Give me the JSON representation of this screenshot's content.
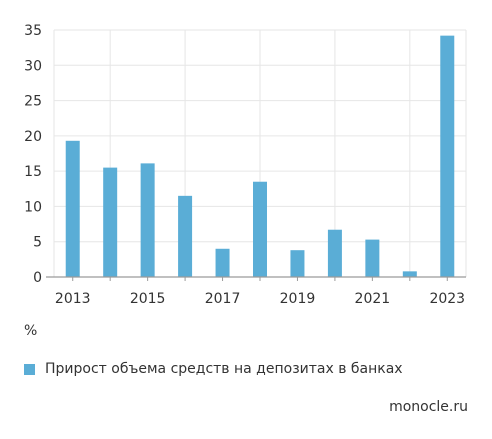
{
  "colors": {
    "bar": "#5aadd6",
    "grid": "#e6e6e6",
    "axis": "#9a9a9a",
    "text": "#333333"
  },
  "chart_data": {
    "type": "bar",
    "categories": [
      "2013",
      "2014",
      "2015",
      "2016",
      "2017",
      "2018",
      "2019",
      "2020",
      "2021",
      "2022",
      "2023"
    ],
    "x_tick_labels": [
      "2013",
      "2015",
      "2017",
      "2019",
      "2021",
      "2023"
    ],
    "series": [
      {
        "name": "Прирост объема средств на депозитах в банках",
        "values": [
          19.3,
          15.5,
          16.1,
          11.5,
          4.0,
          13.5,
          3.8,
          6.7,
          5.3,
          0.8,
          34.2
        ]
      }
    ],
    "ylim": [
      0,
      35
    ],
    "y_ticks": [
      0,
      5,
      10,
      15,
      20,
      25,
      30,
      35
    ],
    "ylabel": "%",
    "grid": true,
    "legend": "bottom-left"
  },
  "unit_label": "%",
  "legend_label": "Прирост объема средств на депозитах в банках",
  "source": "monocle.ru"
}
